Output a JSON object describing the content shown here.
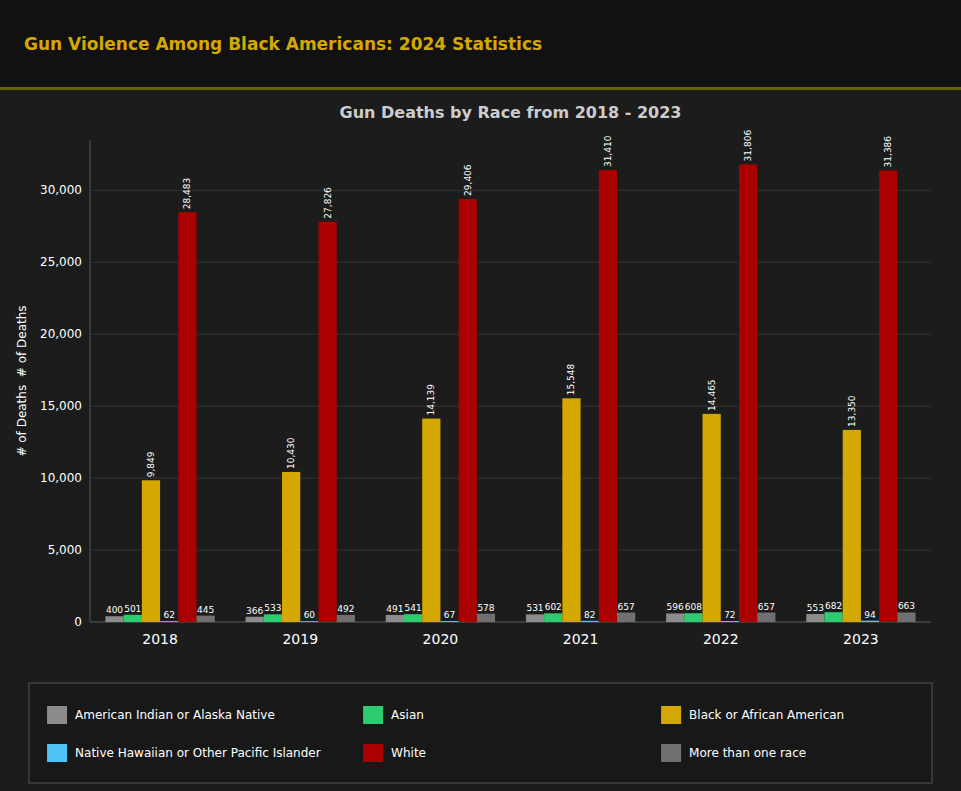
{
  "chart_data": {
    "type": "bar",
    "subtitle": "Gun Violence Among Black Americans: 2024 Statistics",
    "title": "Gun Deaths by Race from 2018 - 2023",
    "ylabel": "# of Deaths  # of Deaths",
    "categories": [
      "2018",
      "2019",
      "2020",
      "2021",
      "2022",
      "2023"
    ],
    "series": [
      {
        "name": "American Indian or Alaska Native",
        "color": "#8c8c8c",
        "values": [
          400,
          366,
          491,
          531,
          596,
          553
        ]
      },
      {
        "name": "Asian",
        "color": "#2ecc71",
        "values": [
          501,
          533,
          541,
          602,
          608,
          682
        ]
      },
      {
        "name": "Black or African American",
        "color": "#d4a800",
        "values": [
          9849,
          10430,
          14139,
          15548,
          14465,
          13350
        ],
        "value_labels": [
          "9,849",
          "10,430",
          "14,139",
          "15,548",
          "14,465",
          "13,350"
        ]
      },
      {
        "name": "Native Hawaiian or Other Pacific Islander",
        "color": "#4fc3f7",
        "values": [
          62,
          60,
          67,
          82,
          72,
          94
        ]
      },
      {
        "name": "White",
        "color": "#aa0000",
        "values": [
          28483,
          27826,
          29406,
          31410,
          31806,
          31386
        ],
        "value_labels": [
          "28,483",
          "27,826",
          "29,406",
          "31,410",
          "31,806",
          "31,386"
        ]
      },
      {
        "name": "More than one race",
        "color": "#707070",
        "values": [
          445,
          492,
          578,
          657,
          657,
          663
        ]
      }
    ],
    "ylim": [
      0,
      33500
    ],
    "yticks": [
      0,
      {
        "value": 5000,
        "label": "5,000"
      },
      {
        "value": 10000,
        "label": "10,000"
      },
      {
        "value": 15000,
        "label": "15,000"
      },
      {
        "value": 20000,
        "label": "20,000"
      },
      {
        "value": 25000,
        "label": "25,000"
      },
      {
        "value": 30000,
        "label": "30,000"
      }
    ],
    "grid": true,
    "data_labels": true,
    "legend": "bottom"
  }
}
